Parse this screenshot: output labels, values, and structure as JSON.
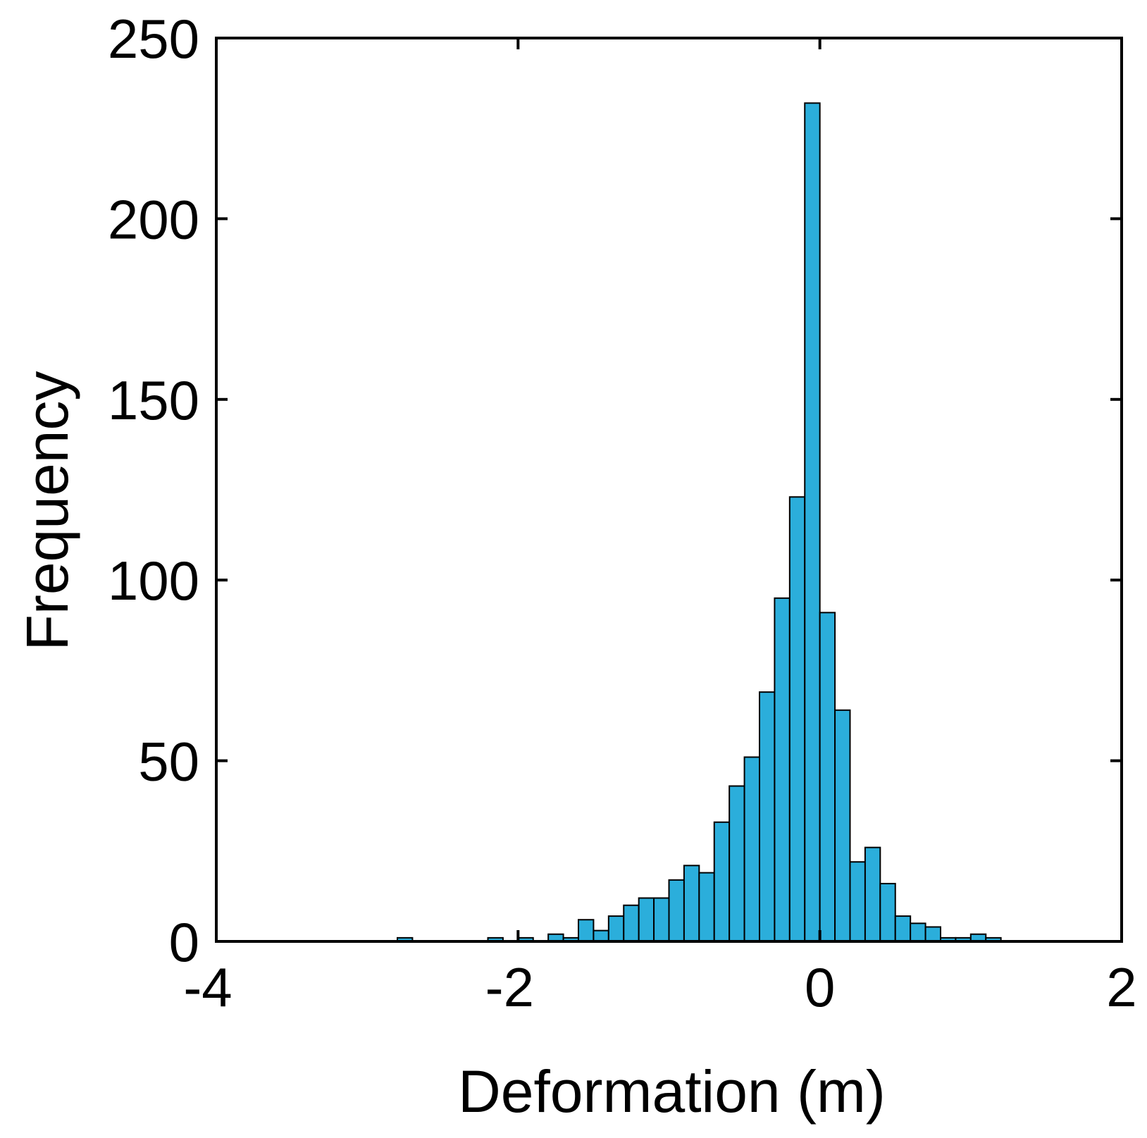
{
  "chart_data": {
    "type": "bar",
    "subtype": "histogram",
    "title": "",
    "xlabel": "Deformation (m)",
    "ylabel": "Frequency",
    "xlim": [
      -4,
      2
    ],
    "ylim": [
      0,
      250
    ],
    "xticks": [
      "-4",
      "-2",
      "0",
      "2"
    ],
    "yticks": [
      "0",
      "50",
      "100",
      "150",
      "200",
      "250"
    ],
    "grid": false,
    "legend": "none",
    "bar_color": "#2BAEDB",
    "edge_color": "#000000",
    "bin_width": 0.1,
    "bins": [
      {
        "x0": -2.8,
        "x1": -2.7,
        "count": 1
      },
      {
        "x0": -2.2,
        "x1": -2.1,
        "count": 1
      },
      {
        "x0": -2.0,
        "x1": -1.9,
        "count": 1
      },
      {
        "x0": -1.8,
        "x1": -1.7,
        "count": 2
      },
      {
        "x0": -1.7,
        "x1": -1.6,
        "count": 1
      },
      {
        "x0": -1.6,
        "x1": -1.5,
        "count": 6
      },
      {
        "x0": -1.5,
        "x1": -1.4,
        "count": 3
      },
      {
        "x0": -1.4,
        "x1": -1.3,
        "count": 7
      },
      {
        "x0": -1.3,
        "x1": -1.2,
        "count": 10
      },
      {
        "x0": -1.2,
        "x1": -1.1,
        "count": 12
      },
      {
        "x0": -1.1,
        "x1": -1.0,
        "count": 12
      },
      {
        "x0": -1.0,
        "x1": -0.9,
        "count": 17
      },
      {
        "x0": -0.9,
        "x1": -0.8,
        "count": 21
      },
      {
        "x0": -0.8,
        "x1": -0.7,
        "count": 19
      },
      {
        "x0": -0.7,
        "x1": -0.6,
        "count": 33
      },
      {
        "x0": -0.6,
        "x1": -0.5,
        "count": 43
      },
      {
        "x0": -0.5,
        "x1": -0.4,
        "count": 51
      },
      {
        "x0": -0.4,
        "x1": -0.3,
        "count": 69
      },
      {
        "x0": -0.3,
        "x1": -0.2,
        "count": 95
      },
      {
        "x0": -0.2,
        "x1": -0.1,
        "count": 123
      },
      {
        "x0": -0.1,
        "x1": 0.0,
        "count": 232
      },
      {
        "x0": 0.0,
        "x1": 0.1,
        "count": 91
      },
      {
        "x0": 0.1,
        "x1": 0.2,
        "count": 64
      },
      {
        "x0": 0.2,
        "x1": 0.3,
        "count": 22
      },
      {
        "x0": 0.3,
        "x1": 0.4,
        "count": 26
      },
      {
        "x0": 0.4,
        "x1": 0.5,
        "count": 16
      },
      {
        "x0": 0.5,
        "x1": 0.6,
        "count": 7
      },
      {
        "x0": 0.6,
        "x1": 0.7,
        "count": 5
      },
      {
        "x0": 0.7,
        "x1": 0.8,
        "count": 4
      },
      {
        "x0": 0.8,
        "x1": 0.9,
        "count": 1
      },
      {
        "x0": 0.9,
        "x1": 1.0,
        "count": 1
      },
      {
        "x0": 1.0,
        "x1": 1.1,
        "count": 2
      },
      {
        "x0": 1.1,
        "x1": 1.2,
        "count": 1
      }
    ]
  }
}
